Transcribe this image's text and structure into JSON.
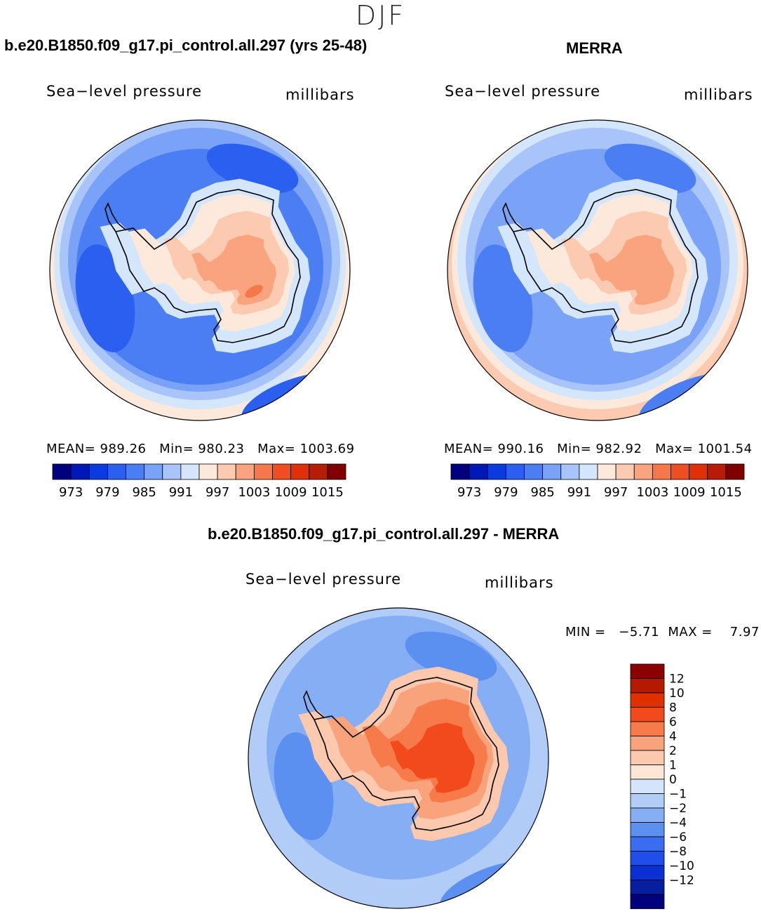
{
  "season": "DJF",
  "panels": [
    {
      "title": "b.e20.B1850.f09_g17.pi_control.all.297 (yrs 25-48)",
      "variable": "Sea−level  pressure",
      "units": "millibars",
      "stats": {
        "mean_label": "MEAN=",
        "mean": "989.26",
        "min_label": "Min=",
        "min": "980.23",
        "max_label": "Max=",
        "max": "1003.69"
      }
    },
    {
      "title": "MERRA",
      "variable": "Sea−level  pressure",
      "units": "millibars",
      "stats": {
        "mean_label": "MEAN=",
        "mean": "990.16",
        "min_label": "Min=",
        "min": "982.92",
        "max_label": "Max=",
        "max": "1001.54"
      }
    },
    {
      "title": "b.e20.B1850.f09_g17.pi_control.all.297 - MERRA",
      "variable": "Sea−level  pressure",
      "units": "millibars",
      "stats": {
        "min_label": "MIN =",
        "min": "−5.71",
        "max_label": "MAX =",
        "max": "7.97"
      }
    }
  ],
  "colorbar_abs": {
    "colors": [
      "#00007f",
      "#0018b8",
      "#0a3ae0",
      "#2a5ff0",
      "#4a7ef2",
      "#7aa2f6",
      "#a8c4f8",
      "#d4e6fc",
      "#fde9dc",
      "#fccab0",
      "#f9a47e",
      "#f5784c",
      "#ef4e22",
      "#e0300a",
      "#b81c06",
      "#800000"
    ],
    "labels": [
      "973",
      "979",
      "985",
      "991",
      "997",
      "1003",
      "1009",
      "1015"
    ]
  },
  "colorbar_diff": {
    "colors": [
      "#8b0000",
      "#b51a00",
      "#e03000",
      "#f24a1c",
      "#f67a4a",
      "#f9a37c",
      "#fcc8ae",
      "#fde6d6",
      "#d4e4fb",
      "#b2ccf8",
      "#86aef4",
      "#5b8ff0",
      "#3a6df0",
      "#1f4ee8",
      "#0a2fd2",
      "#061fa0",
      "#00007f"
    ],
    "labels": [
      "12",
      "10",
      "8",
      "6",
      "4",
      "2",
      "1",
      "0",
      "−1",
      "−2",
      "−4",
      "−6",
      "−8",
      "−10",
      "−12"
    ]
  },
  "maps": [
    {
      "ocean": "#4a7ef2",
      "bands": [
        "#fde9dc",
        "#d4e6fc",
        "#a8c4f8",
        "#7aa2f6"
      ],
      "low": "#2a5ff0",
      "land": [
        "#d4e6fc",
        "#fde9dc",
        "#fccab0",
        "#f9a47e",
        "#f5784c"
      ]
    },
    {
      "ocean": "#7aa2f6",
      "bands": [
        "#fccab0",
        "#fde9dc",
        "#d4e6fc",
        "#a8c4f8"
      ],
      "low": "#4a7ef2",
      "land": [
        "#d4e6fc",
        "#fde9dc",
        "#fccab0",
        "#f9a47e",
        "#f9a47e"
      ]
    },
    {
      "ocean": "#86aef4",
      "bands": [
        "#b2ccf8",
        "#b2ccf8",
        "#b2ccf8",
        "#86aef4"
      ],
      "low": "#5b8ff0",
      "land": [
        "#fcc8ae",
        "#f9a37c",
        "#f67a4a",
        "#f24a1c",
        "#f24a1c"
      ]
    }
  ]
}
